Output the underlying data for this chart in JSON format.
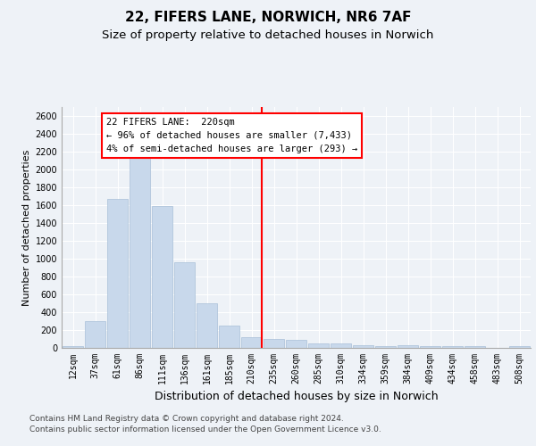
{
  "title1": "22, FIFERS LANE, NORWICH, NR6 7AF",
  "title2": "Size of property relative to detached houses in Norwich",
  "xlabel": "Distribution of detached houses by size in Norwich",
  "ylabel": "Number of detached properties",
  "bar_categories": [
    "12sqm",
    "37sqm",
    "61sqm",
    "86sqm",
    "111sqm",
    "136sqm",
    "161sqm",
    "185sqm",
    "210sqm",
    "235sqm",
    "260sqm",
    "285sqm",
    "310sqm",
    "334sqm",
    "359sqm",
    "384sqm",
    "409sqm",
    "434sqm",
    "458sqm",
    "483sqm",
    "508sqm"
  ],
  "bar_values": [
    25,
    300,
    1670,
    2140,
    1590,
    960,
    500,
    250,
    120,
    105,
    95,
    50,
    50,
    35,
    20,
    30,
    20,
    25,
    20,
    5,
    25
  ],
  "bar_color": "#c8d8eb",
  "bar_edgecolor": "#a8c0d8",
  "vline_index": 8,
  "vline_color": "red",
  "annotation_line1": "22 FIFERS LANE:  220sqm",
  "annotation_line2": "← 96% of detached houses are smaller (7,433)",
  "annotation_line3": "4% of semi-detached houses are larger (293) →",
  "annotation_box_color": "white",
  "annotation_box_edgecolor": "red",
  "ylim": [
    0,
    2700
  ],
  "yticks": [
    0,
    200,
    400,
    600,
    800,
    1000,
    1200,
    1400,
    1600,
    1800,
    2000,
    2200,
    2400,
    2600
  ],
  "footer1": "Contains HM Land Registry data © Crown copyright and database right 2024.",
  "footer2": "Contains public sector information licensed under the Open Government Licence v3.0.",
  "background_color": "#eef2f7",
  "grid_color": "#ffffff",
  "title1_fontsize": 11,
  "title2_fontsize": 9.5,
  "ylabel_fontsize": 8,
  "xlabel_fontsize": 9,
  "tick_fontsize": 7,
  "annotation_fontsize": 7.5,
  "footer_fontsize": 6.5
}
